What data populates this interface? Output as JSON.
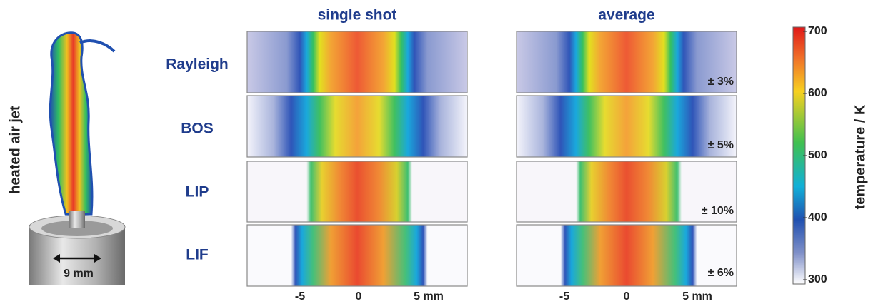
{
  "figure": {
    "left_label": "heated air jet",
    "nozzle_label": "9 mm",
    "columns": [
      "single shot",
      "average"
    ],
    "rows": [
      {
        "label": "Rayleigh",
        "uncertainty": "± 3%"
      },
      {
        "label": "BOS",
        "uncertainty": "± 5%"
      },
      {
        "label": "LIP",
        "uncertainty": "± 10%"
      },
      {
        "label": "LIF",
        "uncertainty": "± 6%"
      }
    ],
    "x_axis_ticks": [
      "-5",
      "0",
      "5 mm"
    ],
    "colorbar": {
      "label": "temperature / K",
      "ticks": [
        "700",
        "600",
        "500",
        "400",
        "300"
      ]
    }
  }
}
